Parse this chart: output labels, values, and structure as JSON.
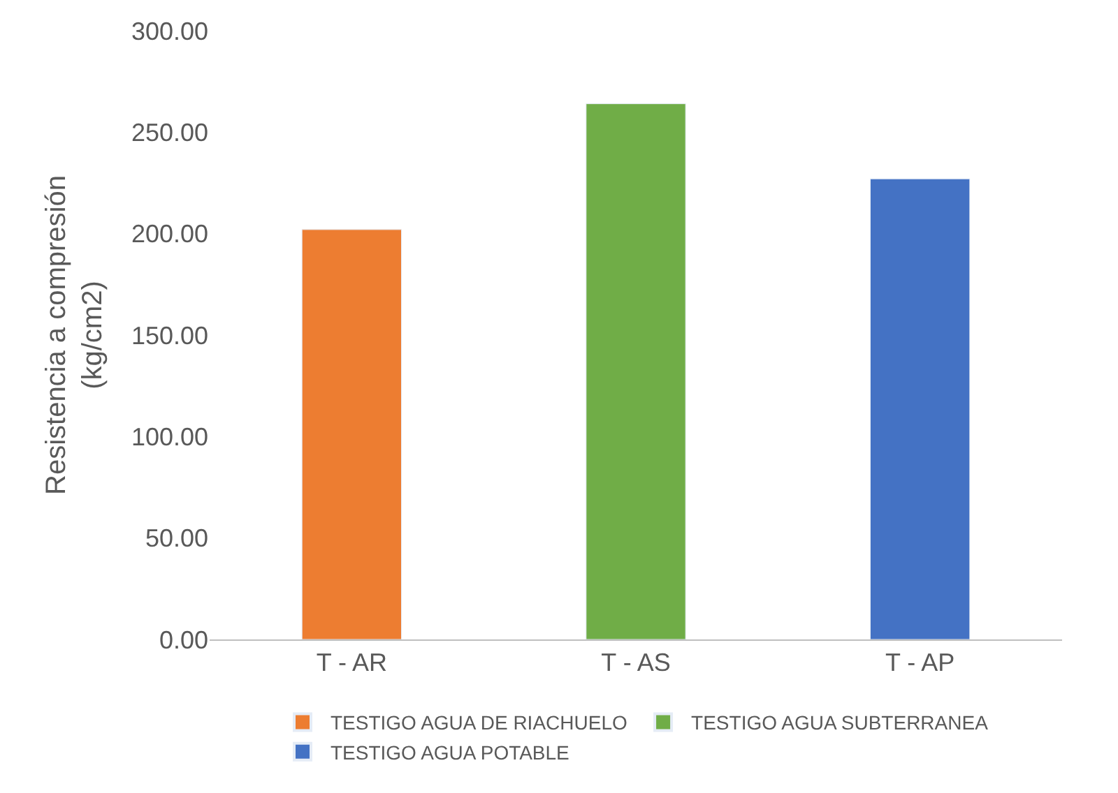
{
  "chart_data": {
    "type": "bar",
    "ylabel": "Resistencia a compresión\n(kg/cm2)",
    "categories": [
      "T - AR",
      "T - AS",
      "T - AP"
    ],
    "series": [
      {
        "name": "TESTIGO AGUA DE RIACHUELO",
        "color": "#ed7d31",
        "values": [
          202,
          null,
          null
        ]
      },
      {
        "name": "TESTIGO AGUA SUBTERRANEA",
        "color": "#70ad47",
        "values": [
          null,
          264,
          null
        ]
      },
      {
        "name": "TESTIGO AGUA POTABLE",
        "color": "#4472c4",
        "values": [
          null,
          null,
          227
        ]
      }
    ],
    "ylim": [
      0,
      300
    ],
    "yticks": [
      {
        "value": 0,
        "label": "0.00"
      },
      {
        "value": 50,
        "label": "50.00"
      },
      {
        "value": 100,
        "label": "100.00"
      },
      {
        "value": 150,
        "label": "150.00"
      },
      {
        "value": 200,
        "label": "200.00"
      },
      {
        "value": 250,
        "label": "250.00"
      },
      {
        "value": 300,
        "label": "300.00"
      }
    ],
    "grid": false,
    "legend": "bottom"
  }
}
